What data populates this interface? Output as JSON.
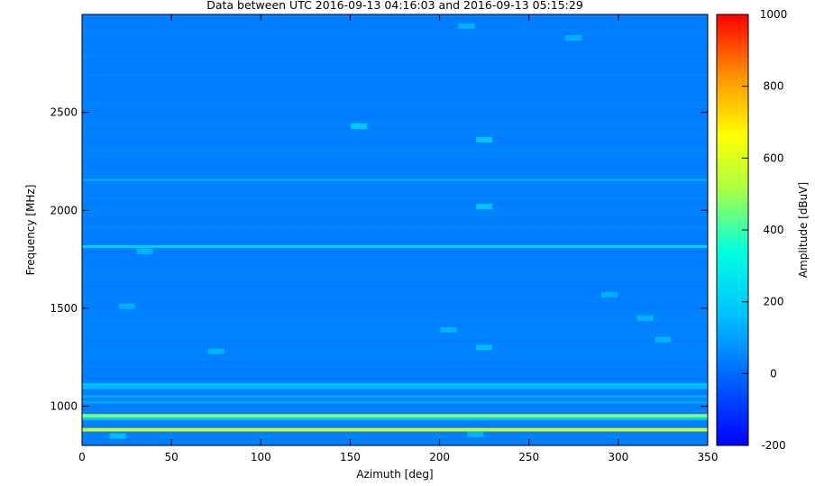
{
  "chart_data": {
    "type": "heatmap",
    "title": "Data between UTC 2016-09-13 04:16:03 and 2016-09-13 05:15:29",
    "xlabel": "Azimuth [deg]",
    "ylabel": "Frequency [MHz]",
    "xlim": [
      0,
      350
    ],
    "ylim": [
      800,
      3000
    ],
    "x_ticks": [
      0,
      50,
      100,
      150,
      200,
      250,
      300,
      350
    ],
    "y_ticks": [
      1000,
      1500,
      2000,
      2500
    ],
    "colorbar": {
      "label": "Amplitude [dBuV]",
      "range": [
        -200,
        1000
      ],
      "ticks": [
        -200,
        0,
        200,
        400,
        600,
        800,
        1000
      ],
      "colormap": [
        "#0000ff",
        "#00a0ff",
        "#00ffff",
        "#ffff00",
        "#ff8000",
        "#ff0000"
      ]
    },
    "background_amplitude": 40,
    "horizontal_bands": [
      {
        "frequency": 882,
        "amplitude": 600
      },
      {
        "frequency": 878,
        "amplitude": 560
      },
      {
        "frequency": 953,
        "amplitude": 520
      },
      {
        "frequency": 948,
        "amplitude": 460
      },
      {
        "frequency": 935,
        "amplitude": 180
      },
      {
        "frequency": 1110,
        "amplitude": 170
      },
      {
        "frequency": 1095,
        "amplitude": 160
      },
      {
        "frequency": 1815,
        "amplitude": 210
      },
      {
        "frequency": 2155,
        "amplitude": 110
      },
      {
        "frequency": 1050,
        "amplitude": 120
      },
      {
        "frequency": 1020,
        "amplitude": 110
      }
    ],
    "hotspots": [
      {
        "azimuth": 155,
        "frequency": 2430,
        "amplitude": 190
      },
      {
        "azimuth": 225,
        "frequency": 2360,
        "amplitude": 170
      },
      {
        "azimuth": 225,
        "frequency": 2020,
        "amplitude": 170
      },
      {
        "azimuth": 225,
        "frequency": 1300,
        "amplitude": 150
      },
      {
        "azimuth": 205,
        "frequency": 1390,
        "amplitude": 140
      },
      {
        "azimuth": 75,
        "frequency": 1280,
        "amplitude": 140
      },
      {
        "azimuth": 35,
        "frequency": 1790,
        "amplitude": 140
      },
      {
        "azimuth": 25,
        "frequency": 1510,
        "amplitude": 130
      },
      {
        "azimuth": 295,
        "frequency": 1570,
        "amplitude": 130
      },
      {
        "azimuth": 315,
        "frequency": 1450,
        "amplitude": 140
      },
      {
        "azimuth": 325,
        "frequency": 1340,
        "amplitude": 140
      },
      {
        "azimuth": 275,
        "frequency": 2880,
        "amplitude": 130
      },
      {
        "azimuth": 215,
        "frequency": 2940,
        "amplitude": 130
      },
      {
        "azimuth": 20,
        "frequency": 848,
        "amplitude": 150
      },
      {
        "azimuth": 220,
        "frequency": 855,
        "amplitude": 140
      }
    ]
  }
}
